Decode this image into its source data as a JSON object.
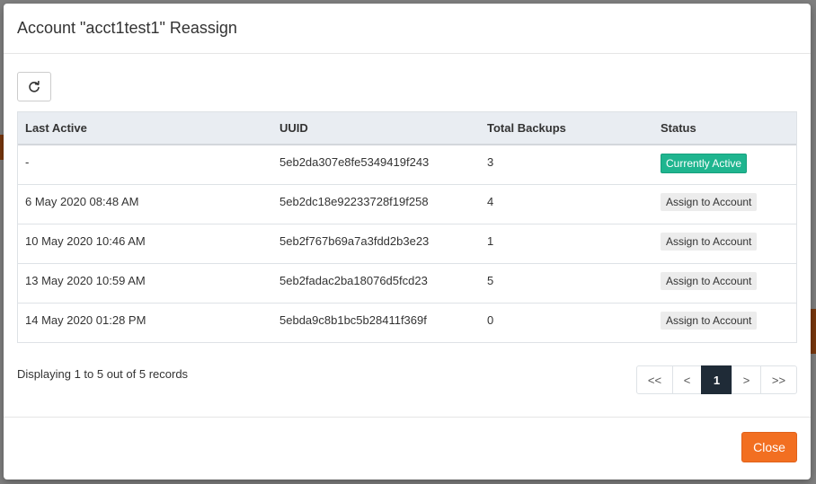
{
  "modal": {
    "title": "Account \"acct1test1\" Reassign"
  },
  "toolbar": {
    "refresh_icon": "refresh-icon"
  },
  "table": {
    "columns": [
      "Last Active",
      "UUID",
      "Total Backups",
      "Status"
    ],
    "rows": [
      {
        "last_active": "-",
        "uuid": "5eb2da307e8fe5349419f243",
        "total_backups": "3",
        "status": "Currently Active",
        "status_type": "active"
      },
      {
        "last_active": "6 May 2020 08:48 AM",
        "uuid": "5eb2dc18e92233728f19f258",
        "total_backups": "4",
        "status": "Assign to Account",
        "status_type": "assign"
      },
      {
        "last_active": "10 May 2020 10:46 AM",
        "uuid": "5eb2f767b69a7a3fdd2b3e23",
        "total_backups": "1",
        "status": "Assign to Account",
        "status_type": "assign"
      },
      {
        "last_active": "13 May 2020 10:59 AM",
        "uuid": "5eb2fadac2ba18076d5fcd23",
        "total_backups": "5",
        "status": "Assign to Account",
        "status_type": "assign"
      },
      {
        "last_active": "14 May 2020 01:28 PM",
        "uuid": "5ebda9c8b1bc5b28411f369f",
        "total_backups": "0",
        "status": "Assign to Account",
        "status_type": "assign"
      }
    ]
  },
  "footer_info": {
    "records_text": "Displaying 1 to 5 out of 5 records"
  },
  "pagination": {
    "first": "<<",
    "prev": "<",
    "current": "1",
    "next": ">",
    "last": ">>"
  },
  "footer": {
    "close_label": "Close"
  },
  "colors": {
    "active_badge": "#1fb58f",
    "close_button": "#f26f21",
    "pagination_active": "#1f2b37",
    "header_bg": "#e9edf2"
  }
}
